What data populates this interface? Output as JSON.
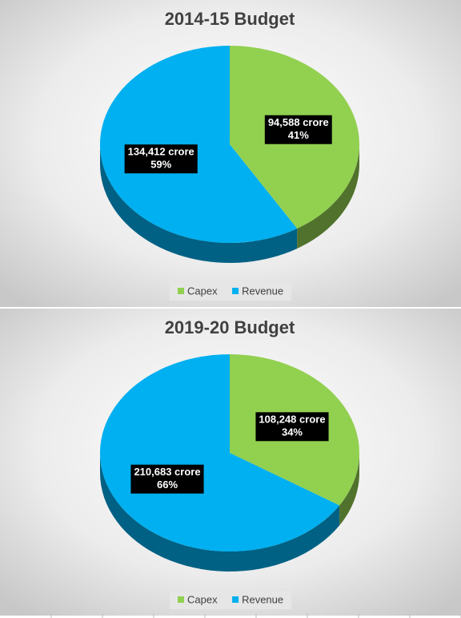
{
  "chart_data": [
    {
      "type": "pie",
      "title": "2014-15 Budget",
      "categories": [
        "Capex",
        "Revenue"
      ],
      "values": [
        94588,
        134412
      ],
      "value_labels": [
        "94,588 crore",
        "134,412 crore"
      ],
      "percentages": [
        41,
        59
      ],
      "percentage_labels": [
        "41%",
        "59%"
      ],
      "colors": [
        "#92d050",
        "#00b0f0"
      ],
      "legend": "bottom"
    },
    {
      "type": "pie",
      "title": "2019-20 Budget",
      "categories": [
        "Capex",
        "Revenue"
      ],
      "values": [
        108248,
        210683
      ],
      "value_labels": [
        "108,248 crore",
        "210,683 crore"
      ],
      "percentages": [
        34,
        66
      ],
      "percentage_labels": [
        "34%",
        "66%"
      ],
      "colors": [
        "#92d050",
        "#00b0f0"
      ],
      "legend": "bottom"
    }
  ]
}
